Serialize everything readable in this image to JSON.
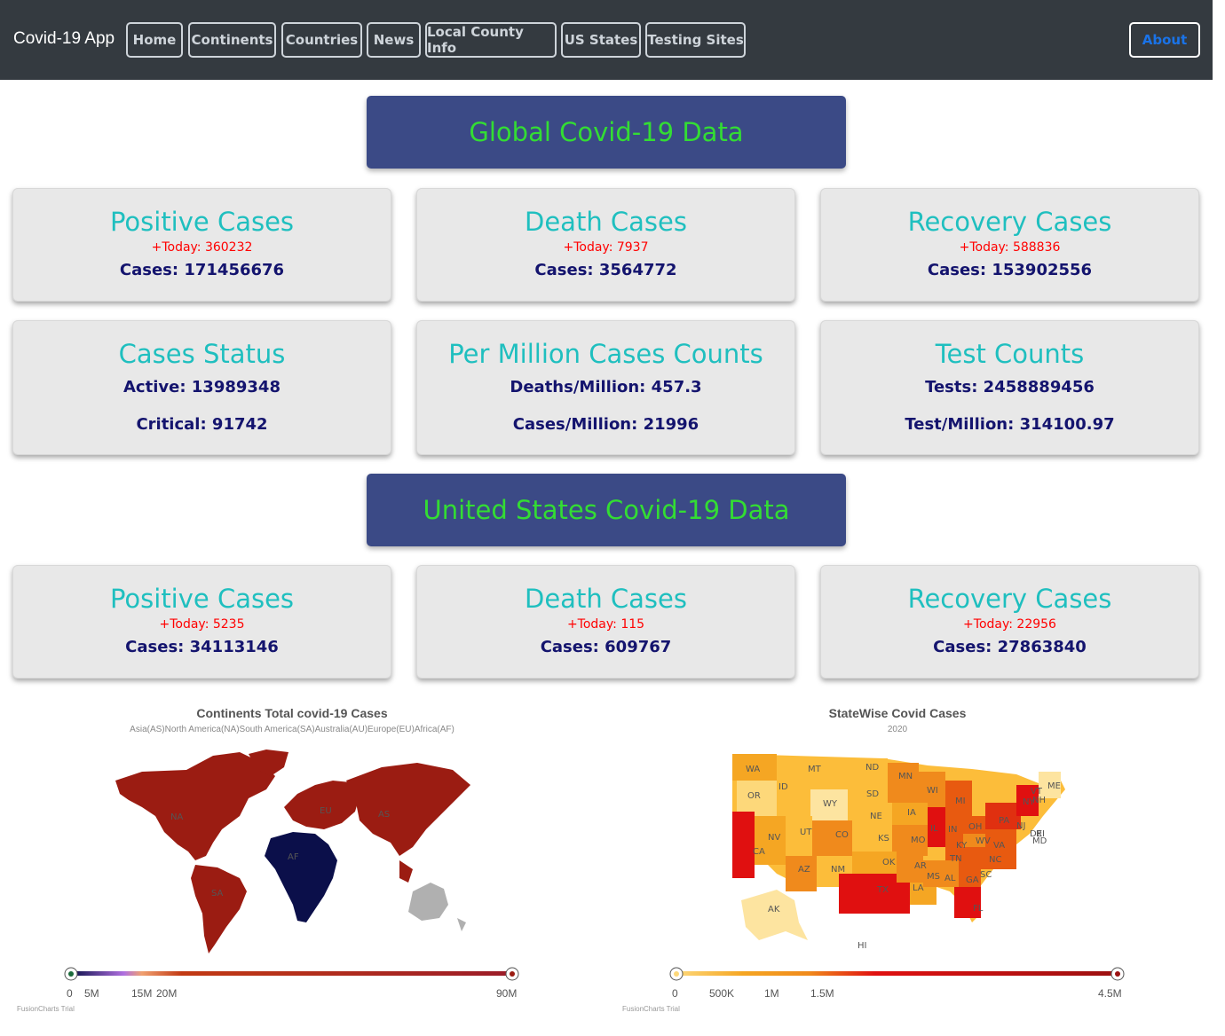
{
  "navbar": {
    "brand": "Covid-19 App",
    "items": [
      "Home",
      "Continents",
      "Countries",
      "News",
      "Local County Info",
      "US States",
      "Testing Sites"
    ],
    "about": "About"
  },
  "global": {
    "heading": "Global Covid-19 Data",
    "positive": {
      "title": "Positive Cases",
      "today": "+Today: 360232",
      "cases": "Cases: 171456676"
    },
    "death": {
      "title": "Death Cases",
      "today": "+Today: 7937",
      "cases": "Cases: 3564772"
    },
    "recovery": {
      "title": "Recovery Cases",
      "today": "+Today: 588836",
      "cases": "Cases: 153902556"
    },
    "status": {
      "title": "Cases Status",
      "active": "Active: 13989348",
      "critical": "Critical: 91742"
    },
    "per_million": {
      "title": "Per Million Cases Counts",
      "deaths": "Deaths/Million: 457.3",
      "cases": "Cases/Million: 21996"
    },
    "tests": {
      "title": "Test Counts",
      "tests": "Tests: 2458889456",
      "per_million": "Test/Million: 314100.97"
    }
  },
  "us": {
    "heading": "United States Covid-19 Data",
    "positive": {
      "title": "Positive Cases",
      "today": "+Today: 5235",
      "cases": "Cases: 34113146"
    },
    "death": {
      "title": "Death Cases",
      "today": "+Today: 115",
      "cases": "Cases: 609767"
    },
    "recovery": {
      "title": "Recovery Cases",
      "today": "+Today: 22956",
      "cases": "Cases: 27863840"
    }
  },
  "continents_map": {
    "title": "Continents Total covid-19 Cases",
    "subtitle": "Asia(AS)North America(NA)South America(SA)Australia(AU)Europe(EU)Africa(AF)",
    "labels": [
      "NA",
      "EU",
      "AS",
      "AF",
      "SA"
    ],
    "scale_ticks": [
      "0",
      "5M",
      "15M",
      "20M",
      "90M"
    ],
    "footer": "FusionCharts Trial",
    "colors": {
      "high": "#9b1c12",
      "low": "#0b0f4a",
      "none": "#b0b0b0"
    }
  },
  "states_map": {
    "title": "StateWise Covid Cases",
    "subtitle": "2020",
    "labels": [
      "WA",
      "MT",
      "ND",
      "MN",
      "OR",
      "ID",
      "SD",
      "WI",
      "MI",
      "NY",
      "VT",
      "NH",
      "ME",
      "WY",
      "NE",
      "IA",
      "IL",
      "IN",
      "OH",
      "PA",
      "NJ",
      "DE",
      "RI",
      "MD",
      "NV",
      "UT",
      "CO",
      "KS",
      "MO",
      "KY",
      "WV",
      "VA",
      "CA",
      "AZ",
      "NM",
      "OK",
      "AR",
      "TN",
      "NC",
      "MS",
      "AL",
      "GA",
      "SC",
      "TX",
      "LA",
      "FL",
      "AK",
      "HI",
      "MA",
      "CT"
    ],
    "scale_ticks": [
      "0",
      "500K",
      "1M",
      "1.5M",
      "4.5M"
    ],
    "footer": "FusionCharts Trial",
    "colors": {
      "low": "#fdd87a",
      "mid": "#f08a1c",
      "high": "#e01010",
      "max": "#9b1010"
    }
  }
}
